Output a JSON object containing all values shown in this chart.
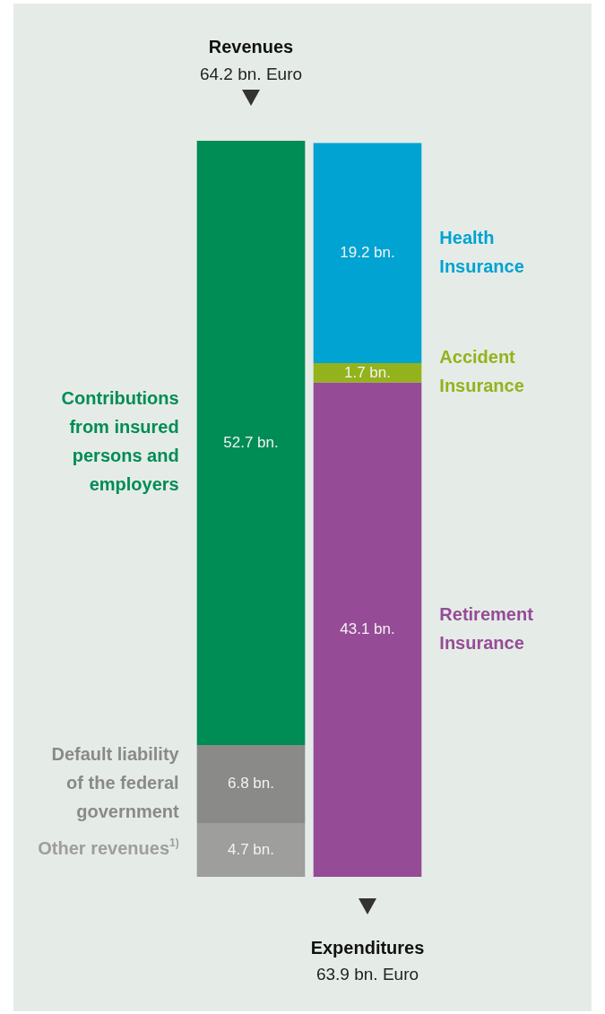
{
  "chart_data": {
    "type": "bar",
    "stacked": true,
    "categories": [
      null,
      null
    ],
    "annotations": [
      "Revenues",
      "64.2 bn. Euro",
      "Expenditures",
      "63.9 bn. Euro"
    ],
    "series": [
      {
        "name": "Other revenues$^{1)}$",
        "color": "#9e9e9c",
        "values": [
          4.7,
          null
        ],
        "value_labels": [
          "4.7 bn.",
          null
        ]
      },
      {
        "name": "Default liability of the federal government",
        "color": "#8a8a89",
        "values": [
          6.8,
          null
        ],
        "value_labels": [
          "6.8 bn.",
          null
        ]
      },
      {
        "name": "Contributions from insured persons and employers",
        "color": "#008c55",
        "values": [
          52.7,
          null
        ],
        "value_labels": [
          "52.7 bn.",
          null
        ]
      },
      {
        "name": "Retirement Insurance",
        "color": "#964b96",
        "values": [
          null,
          43.1
        ],
        "value_labels": [
          null,
          "43.1 bn."
        ]
      },
      {
        "name": "Accident Insurance",
        "color": "#94b21b",
        "values": [
          null,
          1.7
        ],
        "value_labels": [
          null,
          "1.7 bn."
        ]
      },
      {
        "name": "Health Insurance",
        "color": "#00a3d1",
        "values": [
          null,
          19.2
        ],
        "value_labels": [
          null,
          "19.2 bn."
        ]
      }
    ]
  }
}
